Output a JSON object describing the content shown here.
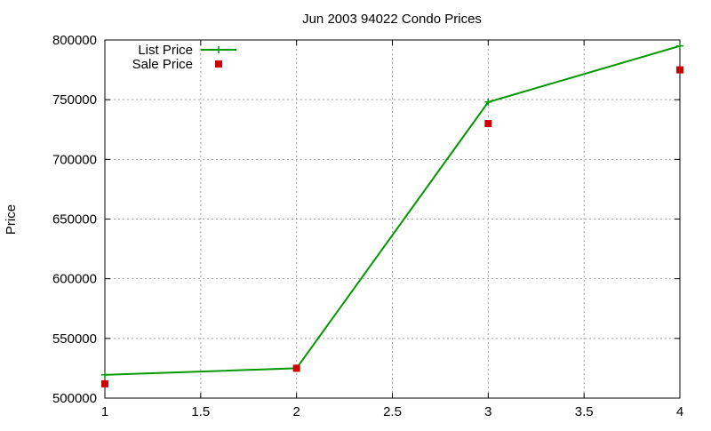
{
  "chart_data": {
    "type": "line",
    "title": "Jun 2003 94022 Condo Prices",
    "xlabel": "",
    "ylabel": "Price",
    "xlim": [
      1,
      4
    ],
    "ylim": [
      500000,
      800000
    ],
    "xticks": [
      1,
      1.5,
      2,
      2.5,
      3,
      3.5,
      4
    ],
    "xtick_labels": [
      "1",
      "1.5",
      "2",
      "2.5",
      "3",
      "3.5",
      "4"
    ],
    "yticks": [
      500000,
      550000,
      600000,
      650000,
      700000,
      750000,
      800000
    ],
    "ytick_labels": [
      "500000",
      "550000",
      "600000",
      "650000",
      "700000",
      "750000",
      "800000"
    ],
    "grid": true,
    "legend_position": "top-left",
    "series": [
      {
        "name": "List Price",
        "style": "line-with-plus-markers",
        "color": "#009900",
        "x": [
          1,
          2,
          3,
          4
        ],
        "y": [
          519500,
          525000,
          748000,
          795000
        ]
      },
      {
        "name": "Sale Price",
        "style": "square-markers",
        "color": "#cc0000",
        "x": [
          1,
          2,
          3,
          4
        ],
        "y": [
          512000,
          525000,
          730000,
          775000
        ]
      }
    ]
  }
}
